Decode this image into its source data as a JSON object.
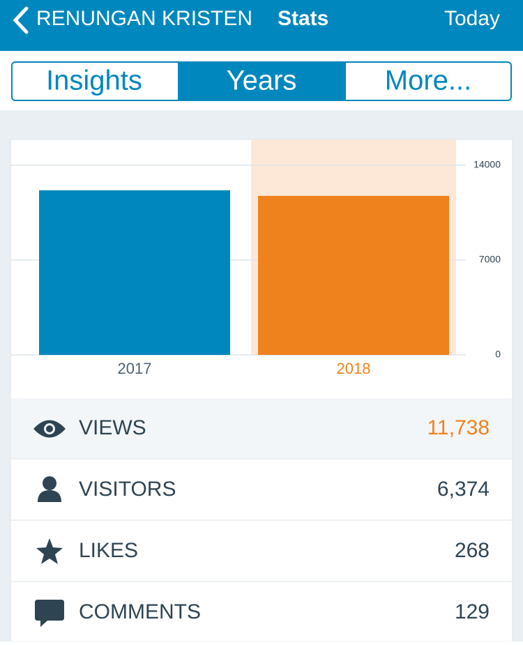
{
  "header": {
    "site": "RENUNGAN KRISTEN",
    "title": "Stats",
    "action": "Today"
  },
  "tabs": [
    "Insights",
    "Years",
    "More..."
  ],
  "chart_data": {
    "type": "bar",
    "categories": [
      "2017",
      "2018"
    ],
    "values": [
      12150,
      11738
    ],
    "colors": [
      "#0087be",
      "#f0821e"
    ],
    "selected": 1,
    "selected_band_color": "#fde8d8",
    "ylim": [
      0,
      15900
    ],
    "yticks": [
      0,
      7000,
      14000
    ],
    "grid": true
  },
  "stats": [
    {
      "label": "VIEWS",
      "value": "11,738"
    },
    {
      "label": "VISITORS",
      "value": "6,374"
    },
    {
      "label": "LIKES",
      "value": "268"
    },
    {
      "label": "COMMENTS",
      "value": "129"
    }
  ]
}
